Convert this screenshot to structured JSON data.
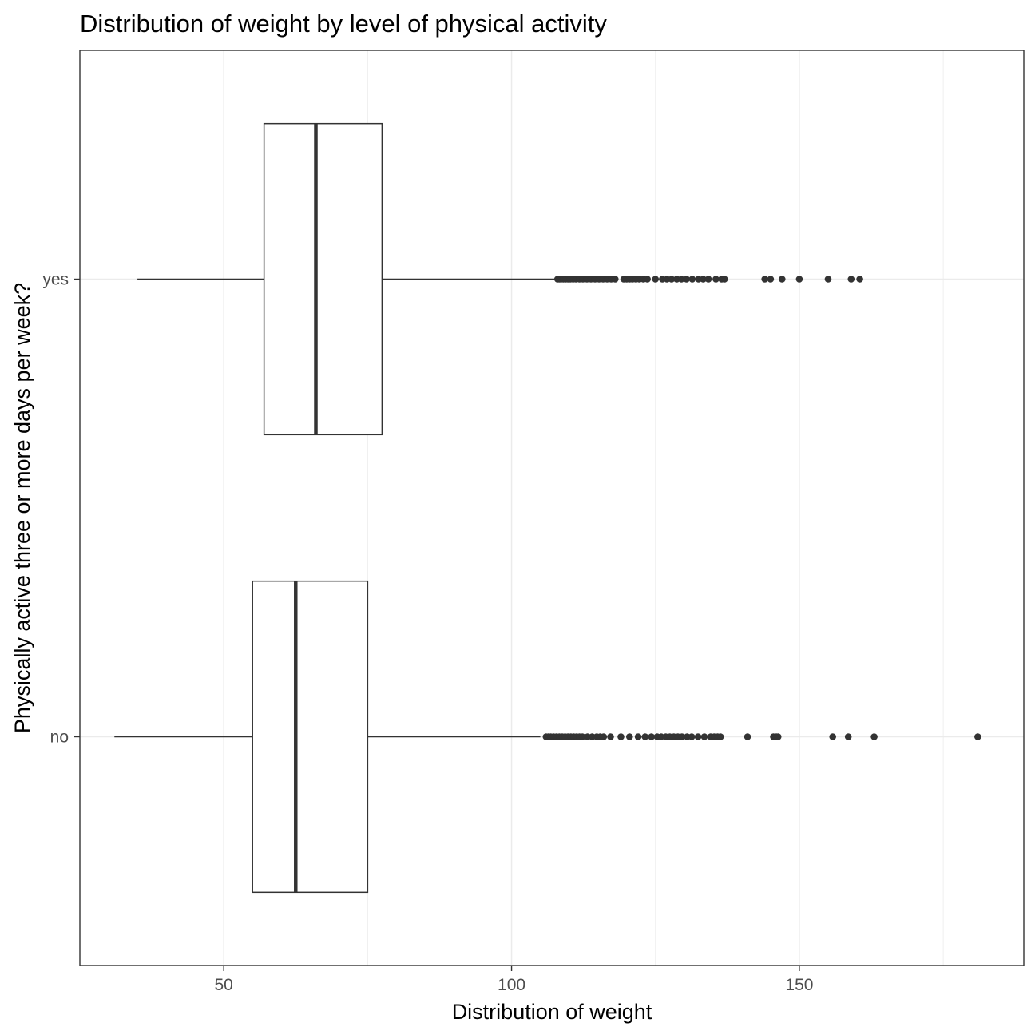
{
  "chart_data": {
    "type": "boxplot",
    "orientation": "horizontal",
    "title": "Distribution of weight by level of physical activity",
    "xlabel": "Distribution of weight",
    "ylabel": "Physically active three or more days per week?",
    "xlim": [
      25,
      189
    ],
    "x_ticks": [
      50,
      100,
      150
    ],
    "grid": true,
    "categories": [
      "yes",
      "no"
    ],
    "series": [
      {
        "category": "yes",
        "whisker_low": 35,
        "q1": 57,
        "median": 66,
        "q3": 77.5,
        "whisker_high": 107.5,
        "outliers": [
          108,
          108.3,
          108.6,
          109,
          109.4,
          109.8,
          110.2,
          110.7,
          111.2,
          111.8,
          112.4,
          113.1,
          113.8,
          114.5,
          115.2,
          115.9,
          116.6,
          117.3,
          118,
          119.5,
          120,
          120.5,
          121,
          121.6,
          122.2,
          122.9,
          123.6,
          125,
          126.2,
          127,
          127.8,
          128.7,
          129.5,
          130.4,
          131.4,
          132.5,
          133.3,
          134.2,
          135.5,
          136.5,
          137,
          144,
          145,
          147,
          150,
          155,
          159,
          160.5
        ]
      },
      {
        "category": "no",
        "whisker_low": 31,
        "q1": 55,
        "median": 62.5,
        "q3": 75,
        "whisker_high": 105,
        "outliers": [
          106,
          106.4,
          106.8,
          107.3,
          107.8,
          108.3,
          108.8,
          109.3,
          109.8,
          110.3,
          110.8,
          111.3,
          111.8,
          112.3,
          113.2,
          114,
          114.8,
          115.4,
          116,
          117.2,
          119,
          120.5,
          122,
          123.2,
          124.3,
          125.3,
          126,
          126.8,
          127.5,
          128.2,
          128.9,
          129.6,
          130.5,
          131.3,
          132.4,
          133.5,
          134.6,
          135.2,
          135.8,
          136.3,
          141,
          145.5,
          146,
          146.3,
          155.8,
          158.5,
          163,
          181
        ]
      }
    ]
  }
}
